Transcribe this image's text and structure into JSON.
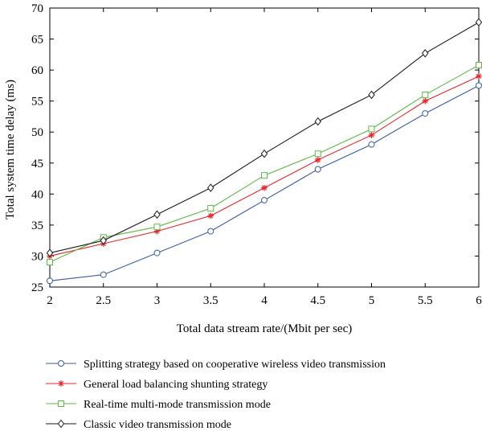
{
  "chart_data": {
    "type": "line",
    "title": "",
    "xlabel": "Total data stream rate/(Mbit per sec)",
    "ylabel": "Total system time delay (ms)",
    "xlim": [
      2,
      6
    ],
    "ylim": [
      25,
      70
    ],
    "x_ticks": [
      "2",
      "2.5",
      "3",
      "3.5",
      "4",
      "4.5",
      "5",
      "5.5",
      "6"
    ],
    "y_ticks": [
      "25",
      "30",
      "35",
      "40",
      "45",
      "50",
      "55",
      "60",
      "65",
      "70"
    ],
    "grid": false,
    "legend_position": "bottom",
    "x": [
      2,
      2.5,
      3,
      3.5,
      4,
      4.5,
      5,
      5.5,
      6
    ],
    "series": [
      {
        "name": "Splitting strategy based on cooperative wireless video transmission",
        "color": "#3a5aa8",
        "marker": "circle",
        "values": [
          26,
          27,
          30.5,
          34,
          39,
          44,
          48,
          53,
          57.5
        ]
      },
      {
        "name": "General load balancing shunting strategy",
        "color": "#e8262b",
        "marker": "asterisk",
        "values": [
          30,
          32,
          34,
          36.5,
          41,
          45.5,
          49.5,
          55,
          59
        ]
      },
      {
        "name": "Real-time multi-mode transmission mode",
        "color": "#5cb944",
        "marker": "square",
        "values": [
          29,
          33,
          34.7,
          37.7,
          43,
          46.5,
          50.5,
          56,
          60.8
        ]
      },
      {
        "name": "Classic video transmission mode",
        "color": "#1a1a1a",
        "marker": "diamond",
        "values": [
          30.5,
          32.5,
          36.7,
          41,
          46.5,
          51.7,
          56,
          62.7,
          67.7
        ]
      }
    ]
  }
}
